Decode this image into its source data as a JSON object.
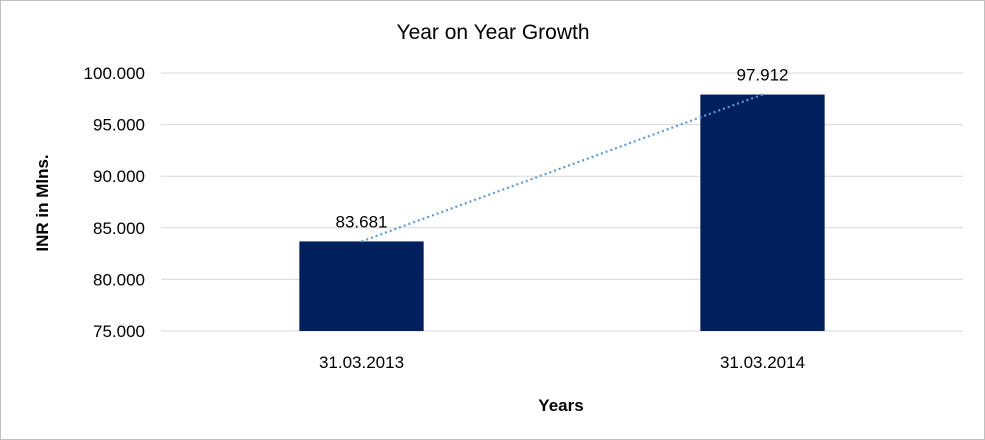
{
  "chart_data": {
    "type": "bar",
    "title": "Year on Year Growth",
    "xlabel": "Years",
    "ylabel": "INR in Mlns.",
    "categories": [
      "31.03.2013",
      "31.03.2014"
    ],
    "values": [
      83.681,
      97.912
    ],
    "data_labels": [
      "83.681",
      "97.912"
    ],
    "ylim": [
      75,
      100
    ],
    "yticks": [
      75,
      80,
      85,
      90,
      95,
      100
    ],
    "ytick_labels": [
      "75.000",
      "80.000",
      "85.000",
      "90.000",
      "95.000",
      "100.000"
    ],
    "bar_color": "#001f5c",
    "trendline": {
      "type": "linear",
      "style": "dotted",
      "color": "#5b9bd5"
    },
    "grid": true,
    "legend": "none"
  }
}
